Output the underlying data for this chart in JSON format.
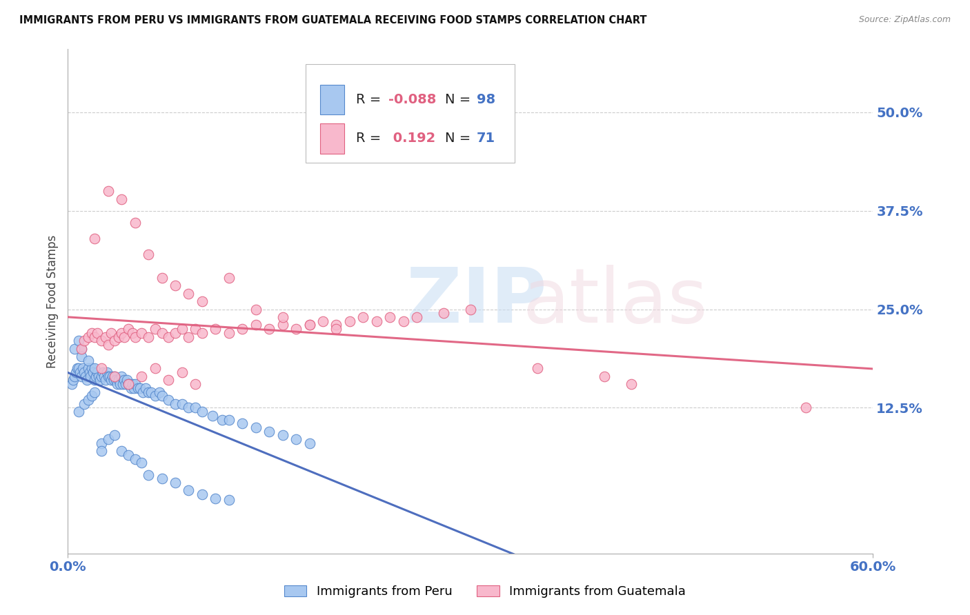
{
  "title": "IMMIGRANTS FROM PERU VS IMMIGRANTS FROM GUATEMALA RECEIVING FOOD STAMPS CORRELATION CHART",
  "source": "Source: ZipAtlas.com",
  "ylabel": "Receiving Food Stamps",
  "xlim": [
    0.0,
    0.6
  ],
  "ylim": [
    -0.06,
    0.58
  ],
  "legend_r_peru": "-0.088",
  "legend_n_peru": "98",
  "legend_r_guatemala": "0.192",
  "legend_n_guatemala": "71",
  "color_peru_fill": "#A8C8F0",
  "color_peru_edge": "#5588CC",
  "color_guatemala_fill": "#F8B8CC",
  "color_guatemala_edge": "#E06080",
  "color_peru_line": "#4466BB",
  "color_guatemala_line": "#E06080",
  "color_axis_labels": "#4472C4",
  "background_color": "#ffffff",
  "grid_color": "#cccccc",
  "peru_x": [
    0.003,
    0.004,
    0.005,
    0.006,
    0.007,
    0.008,
    0.009,
    0.01,
    0.01,
    0.011,
    0.012,
    0.013,
    0.014,
    0.015,
    0.016,
    0.017,
    0.018,
    0.019,
    0.02,
    0.021,
    0.022,
    0.023,
    0.024,
    0.025,
    0.026,
    0.027,
    0.028,
    0.029,
    0.03,
    0.031,
    0.032,
    0.033,
    0.034,
    0.035,
    0.036,
    0.037,
    0.038,
    0.039,
    0.04,
    0.041,
    0.042,
    0.043,
    0.044,
    0.045,
    0.046,
    0.047,
    0.048,
    0.049,
    0.05,
    0.052,
    0.054,
    0.056,
    0.058,
    0.06,
    0.062,
    0.065,
    0.068,
    0.07,
    0.075,
    0.08,
    0.085,
    0.09,
    0.095,
    0.1,
    0.108,
    0.115,
    0.12,
    0.13,
    0.14,
    0.15,
    0.16,
    0.17,
    0.18,
    0.008,
    0.012,
    0.015,
    0.018,
    0.02,
    0.025,
    0.03,
    0.035,
    0.04,
    0.045,
    0.05,
    0.055,
    0.06,
    0.07,
    0.08,
    0.09,
    0.1,
    0.11,
    0.12,
    0.005,
    0.008,
    0.01,
    0.015,
    0.02,
    0.025
  ],
  "peru_y": [
    0.155,
    0.16,
    0.165,
    0.17,
    0.175,
    0.175,
    0.17,
    0.165,
    0.2,
    0.175,
    0.17,
    0.165,
    0.16,
    0.175,
    0.17,
    0.165,
    0.175,
    0.17,
    0.16,
    0.165,
    0.17,
    0.165,
    0.16,
    0.165,
    0.17,
    0.165,
    0.16,
    0.17,
    0.165,
    0.165,
    0.16,
    0.165,
    0.16,
    0.165,
    0.16,
    0.155,
    0.16,
    0.155,
    0.165,
    0.155,
    0.16,
    0.155,
    0.16,
    0.155,
    0.155,
    0.15,
    0.155,
    0.15,
    0.155,
    0.15,
    0.15,
    0.145,
    0.15,
    0.145,
    0.145,
    0.14,
    0.145,
    0.14,
    0.135,
    0.13,
    0.13,
    0.125,
    0.125,
    0.12,
    0.115,
    0.11,
    0.11,
    0.105,
    0.1,
    0.095,
    0.09,
    0.085,
    0.08,
    0.12,
    0.13,
    0.135,
    0.14,
    0.145,
    0.08,
    0.085,
    0.09,
    0.07,
    0.065,
    0.06,
    0.055,
    0.04,
    0.035,
    0.03,
    0.02,
    0.015,
    0.01,
    0.008,
    0.2,
    0.21,
    0.19,
    0.185,
    0.175,
    0.07
  ],
  "guatemala_x": [
    0.01,
    0.012,
    0.015,
    0.018,
    0.02,
    0.022,
    0.025,
    0.028,
    0.03,
    0.032,
    0.035,
    0.038,
    0.04,
    0.042,
    0.045,
    0.048,
    0.05,
    0.055,
    0.06,
    0.065,
    0.07,
    0.075,
    0.08,
    0.085,
    0.09,
    0.095,
    0.1,
    0.11,
    0.12,
    0.13,
    0.14,
    0.15,
    0.16,
    0.17,
    0.18,
    0.19,
    0.2,
    0.21,
    0.22,
    0.23,
    0.24,
    0.25,
    0.26,
    0.28,
    0.3,
    0.02,
    0.03,
    0.04,
    0.05,
    0.06,
    0.07,
    0.08,
    0.09,
    0.1,
    0.12,
    0.14,
    0.16,
    0.18,
    0.2,
    0.35,
    0.4,
    0.42,
    0.55,
    0.025,
    0.035,
    0.045,
    0.055,
    0.065,
    0.075,
    0.085,
    0.095
  ],
  "guatemala_y": [
    0.2,
    0.21,
    0.215,
    0.22,
    0.215,
    0.22,
    0.21,
    0.215,
    0.205,
    0.22,
    0.21,
    0.215,
    0.22,
    0.215,
    0.225,
    0.22,
    0.215,
    0.22,
    0.215,
    0.225,
    0.22,
    0.215,
    0.22,
    0.225,
    0.215,
    0.225,
    0.22,
    0.225,
    0.22,
    0.225,
    0.23,
    0.225,
    0.23,
    0.225,
    0.23,
    0.235,
    0.23,
    0.235,
    0.24,
    0.235,
    0.24,
    0.235,
    0.24,
    0.245,
    0.25,
    0.34,
    0.4,
    0.39,
    0.36,
    0.32,
    0.29,
    0.28,
    0.27,
    0.26,
    0.29,
    0.25,
    0.24,
    0.23,
    0.225,
    0.175,
    0.165,
    0.155,
    0.125,
    0.175,
    0.165,
    0.155,
    0.165,
    0.175,
    0.16,
    0.17,
    0.155
  ]
}
